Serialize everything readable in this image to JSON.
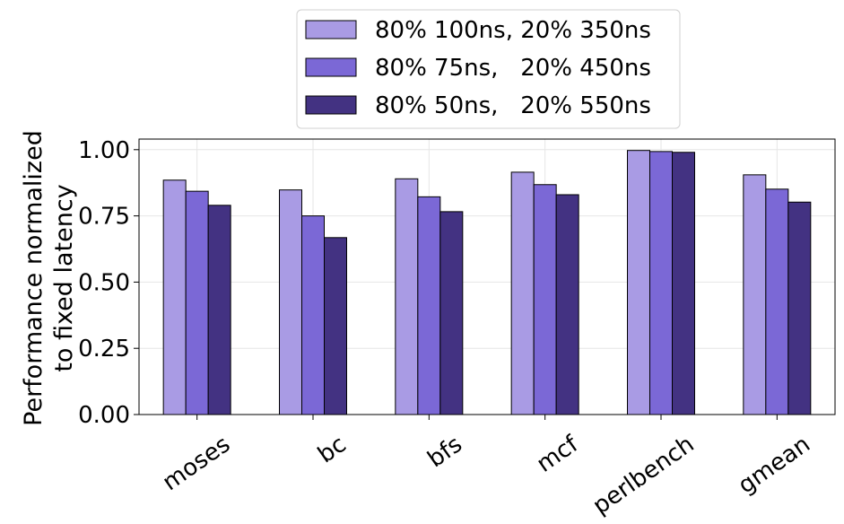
{
  "chart_data": {
    "type": "bar",
    "categories": [
      "moses",
      "bc",
      "bfs",
      "mcf",
      "perlbench",
      "gmean"
    ],
    "series": [
      {
        "name": "80% 100ns, 20% 350ns",
        "color": "#a99be4",
        "values": [
          0.885,
          0.848,
          0.89,
          0.915,
          0.997,
          0.905
        ]
      },
      {
        "name": "80% 75ns,   20% 450ns",
        "color": "#7b68d6",
        "values": [
          0.843,
          0.75,
          0.822,
          0.868,
          0.993,
          0.851
        ]
      },
      {
        "name": "80% 50ns,   20% 550ns",
        "color": "#433282",
        "values": [
          0.79,
          0.668,
          0.766,
          0.83,
          0.99,
          0.802
        ]
      }
    ],
    "ylabel_line1": "Performance normalized",
    "ylabel_line2": "to fixed latency",
    "ylim": [
      0,
      1.04
    ],
    "yticks": [
      0.0,
      0.25,
      0.5,
      0.75,
      1.0
    ],
    "ytick_labels": [
      "0.00",
      "0.25",
      "0.50",
      "0.75",
      "1.00"
    ],
    "grid": true,
    "legend_position": "top-center"
  }
}
